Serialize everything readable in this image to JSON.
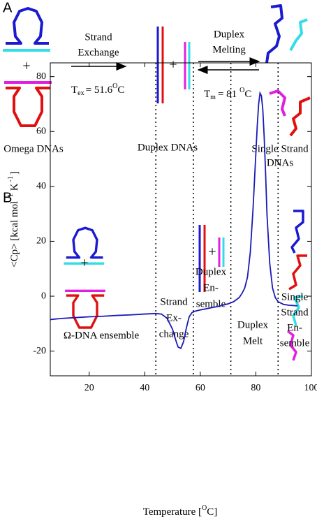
{
  "panel_a": {
    "label": "A",
    "plus_left": "+",
    "plus_middle": "+",
    "exchange_lines": [
      "Strand",
      "Exchange"
    ],
    "tex": {
      "main": "T",
      "sub": "ex",
      "value": "= 51.6",
      "sup": "O",
      "unit": "C"
    },
    "melting_lines": [
      "Duplex",
      "Melting"
    ],
    "tm": {
      "main": "T",
      "sub": "m",
      "value": "= 81",
      "sup": "O",
      "unit": "C"
    },
    "omega_caption": "Omega DNAs",
    "duplex_caption": "Duplex DNAs",
    "single_caption_lines": [
      "Single Strand",
      "DNAs"
    ]
  },
  "chart_data": {
    "type": "line",
    "panel_label": "B",
    "xlabel": {
      "text": "Temperature [",
      "sup": "O",
      "text2": "C]"
    },
    "ylabel": {
      "text": "<Cp> [kcal mol",
      "sup1": "-1",
      "text2": "K",
      "sup2": "-1",
      "text3": "]"
    },
    "xlim": [
      6,
      100
    ],
    "ylim": [
      -29,
      85
    ],
    "xticks": [
      20,
      40,
      60,
      80,
      100
    ],
    "yticks": [
      -20,
      0,
      20,
      40,
      60,
      80
    ],
    "vlines": [
      44,
      57.5,
      71,
      88
    ],
    "inset_plus": "+",
    "regions": [
      [
        "Ω-DNA ensemble"
      ],
      [
        "Strand",
        "Ex-",
        "change"
      ],
      [
        "Duplex",
        "En-",
        "semble"
      ],
      [
        "Duplex",
        "Melt"
      ],
      [
        "Single",
        "Strand",
        "En-",
        "semble"
      ]
    ],
    "x": [
      6,
      10,
      15,
      20,
      25,
      30,
      35,
      40,
      44,
      46,
      48,
      50,
      51,
      52,
      53,
      54,
      55,
      56,
      57,
      58,
      60,
      62,
      64,
      66,
      68,
      70,
      72,
      74,
      75,
      76,
      77,
      78,
      79,
      80,
      80.5,
      81,
      81.5,
      82,
      82.5,
      83,
      83.5,
      84,
      85,
      86,
      87,
      88,
      90,
      92,
      95
    ],
    "series": [
      {
        "color": "#1a1ab8",
        "values": [
          -8.5,
          -8.1,
          -7.8,
          -7.5,
          -7.3,
          -7,
          -6.8,
          -6.5,
          -6.3,
          -6.5,
          -8,
          -12,
          -15.5,
          -18.5,
          -19,
          -16.5,
          -11.5,
          -7.5,
          -6,
          -5.5,
          -5,
          -4.6,
          -4.2,
          -3.8,
          -3.3,
          -2.8,
          -2,
          -0.5,
          1,
          3,
          7,
          16,
          32,
          52,
          62,
          70,
          74,
          73,
          68,
          58,
          45,
          30,
          12,
          3,
          -0.5,
          -2,
          -3,
          -3.3,
          -3.5
        ]
      }
    ]
  }
}
